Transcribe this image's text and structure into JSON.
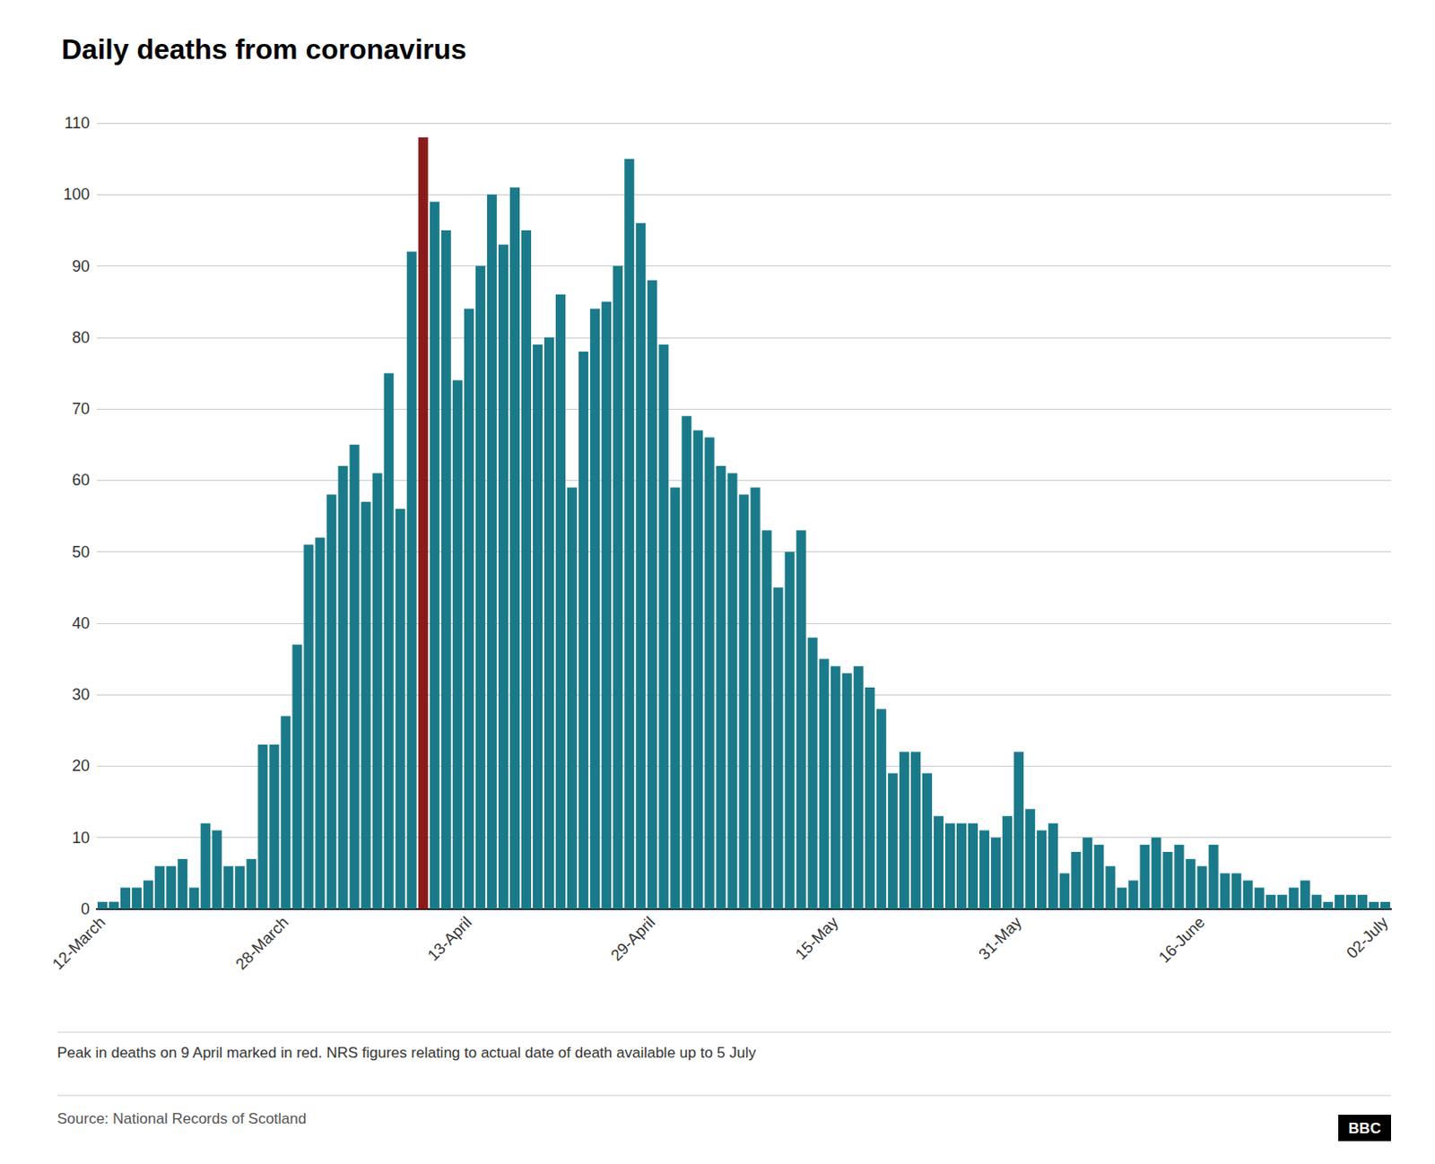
{
  "chart_data": {
    "type": "bar",
    "title": "Daily deaths from coronavirus",
    "annotations": [
      "Peak in deaths on 9 April marked in red. NRS figures relating to actual date of death available up to 5 July",
      "Source: National Records of Scotland",
      "BBC"
    ],
    "categories": [
      "12-March",
      null,
      null,
      null,
      null,
      null,
      null,
      null,
      null,
      null,
      null,
      null,
      null,
      null,
      null,
      null,
      "28-March",
      null,
      null,
      null,
      null,
      null,
      null,
      null,
      null,
      null,
      null,
      null,
      null,
      null,
      null,
      null,
      "13-April",
      null,
      null,
      null,
      null,
      null,
      null,
      null,
      null,
      null,
      null,
      null,
      null,
      null,
      null,
      null,
      "29-April",
      null,
      null,
      null,
      null,
      null,
      null,
      null,
      null,
      null,
      null,
      null,
      null,
      null,
      null,
      null,
      "15-May",
      null,
      null,
      null,
      null,
      null,
      null,
      null,
      null,
      null,
      null,
      null,
      null,
      null,
      null,
      null,
      "31-May",
      null,
      null,
      null,
      null,
      null,
      null,
      null,
      null,
      null,
      null,
      null,
      null,
      null,
      null,
      null,
      "16-June",
      null,
      null,
      null,
      null,
      null,
      null,
      null,
      null,
      null,
      null,
      null,
      null,
      null,
      null,
      null,
      "02-July"
    ],
    "values": [
      1,
      1,
      3,
      3,
      4,
      6,
      6,
      7,
      3,
      12,
      11,
      6,
      6,
      7,
      23,
      23,
      27,
      37,
      51,
      52,
      58,
      62,
      65,
      57,
      61,
      75,
      56,
      92,
      108,
      99,
      95,
      74,
      84,
      90,
      100,
      93,
      101,
      95,
      79,
      80,
      86,
      59,
      78,
      84,
      85,
      90,
      105,
      96,
      88,
      79,
      59,
      69,
      67,
      66,
      62,
      61,
      58,
      59,
      53,
      45,
      50,
      53,
      38,
      35,
      34,
      33,
      34,
      31,
      28,
      19,
      22,
      22,
      19,
      13,
      12,
      12,
      12,
      11,
      10,
      13,
      22,
      14,
      11,
      12,
      5,
      8,
      10,
      9,
      6,
      3,
      4,
      9,
      10,
      8,
      9,
      7,
      6,
      9,
      5,
      5,
      4,
      3,
      2,
      2,
      3,
      4,
      2,
      1,
      2,
      2,
      2,
      1,
      1
    ],
    "colors": [
      "#1a7a8a",
      "#1a7a8a",
      "#1a7a8a",
      "#1a7a8a",
      "#1a7a8a",
      "#1a7a8a",
      "#1a7a8a",
      "#1a7a8a",
      "#1a7a8a",
      "#1a7a8a",
      "#1a7a8a",
      "#1a7a8a",
      "#1a7a8a",
      "#1a7a8a",
      "#1a7a8a",
      "#1a7a8a",
      "#1a7a8a",
      "#1a7a8a",
      "#1a7a8a",
      "#1a7a8a",
      "#1a7a8a",
      "#1a7a8a",
      "#1a7a8a",
      "#1a7a8a",
      "#1a7a8a",
      "#1a7a8a",
      "#1a7a8a",
      "#1a7a8a",
      "#8b1a1a",
      "#1a7a8a",
      "#1a7a8a",
      "#1a7a8a",
      "#1a7a8a",
      "#1a7a8a",
      "#1a7a8a",
      "#1a7a8a",
      "#1a7a8a",
      "#1a7a8a",
      "#1a7a8a",
      "#1a7a8a",
      "#1a7a8a",
      "#1a7a8a",
      "#1a7a8a",
      "#1a7a8a",
      "#1a7a8a",
      "#1a7a8a",
      "#1a7a8a",
      "#1a7a8a",
      "#1a7a8a",
      "#1a7a8a",
      "#1a7a8a",
      "#1a7a8a",
      "#1a7a8a",
      "#1a7a8a",
      "#1a7a8a",
      "#1a7a8a",
      "#1a7a8a",
      "#1a7a8a",
      "#1a7a8a",
      "#1a7a8a",
      "#1a7a8a",
      "#1a7a8a",
      "#1a7a8a",
      "#1a7a8a",
      "#1a7a8a",
      "#1a7a8a",
      "#1a7a8a",
      "#1a7a8a",
      "#1a7a8a",
      "#1a7a8a",
      "#1a7a8a",
      "#1a7a8a",
      "#1a7a8a",
      "#1a7a8a",
      "#1a7a8a",
      "#1a7a8a",
      "#1a7a8a",
      "#1a7a8a",
      "#1a7a8a",
      "#1a7a8a",
      "#1a7a8a",
      "#1a7a8a",
      "#1a7a8a",
      "#1a7a8a",
      "#1a7a8a",
      "#1a7a8a",
      "#1a7a8a",
      "#1a7a8a",
      "#1a7a8a",
      "#1a7a8a",
      "#1a7a8a",
      "#1a7a8a",
      "#1a7a8a",
      "#1a7a8a",
      "#1a7a8a",
      "#1a7a8a",
      "#1a7a8a",
      "#1a7a8a",
      "#1a7a8a",
      "#1a7a8a",
      "#1a7a8a",
      "#1a7a8a",
      "#1a7a8a",
      "#1a7a8a",
      "#1a7a8a",
      "#1a7a8a",
      "#1a7a8a",
      "#1a7a8a",
      "#1a7a8a",
      "#1a7a8a",
      "#1a7a8a",
      "#1a7a8a",
      "#1a7a8a"
    ],
    "ylim": [
      0,
      110
    ],
    "yticks": [
      0,
      10,
      20,
      30,
      40,
      50,
      60,
      70,
      80,
      90,
      100,
      110
    ],
    "grid": true
  }
}
